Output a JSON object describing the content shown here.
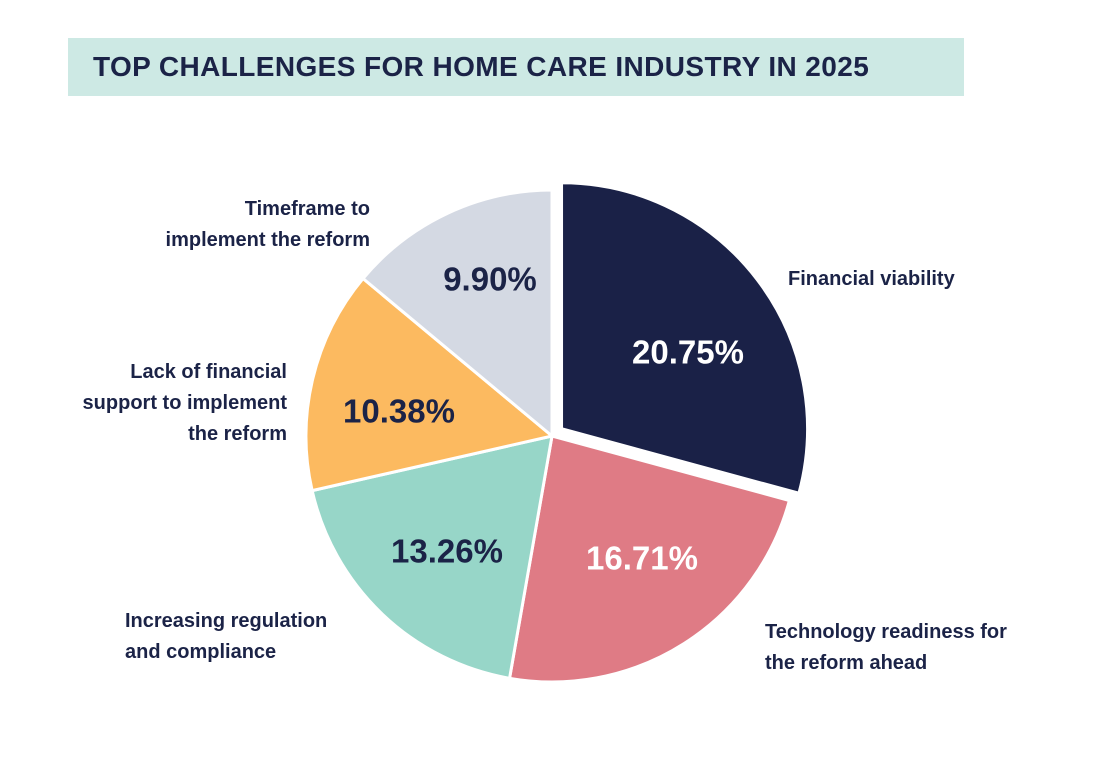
{
  "title": {
    "text": "TOP CHALLENGES FOR HOME CARE INDUSTRY IN 2025",
    "background_color": "#cde9e4",
    "text_color": "#1b2347"
  },
  "chart_data": {
    "type": "pie",
    "title": "TOP CHALLENGES FOR HOME CARE INDUSTRY IN 2025",
    "direction": "clockwise",
    "start_angle_deg": 0,
    "total": 71.0,
    "legend_position": "around-pie",
    "slices": [
      {
        "id": "financial-viability",
        "label": "Financial viability",
        "value": 20.75,
        "display_value": "20.75%",
        "color": "#1a2147",
        "value_label_color": "#ffffff"
      },
      {
        "id": "technology-readiness",
        "label": "Technology readiness for the reform ahead",
        "value": 16.71,
        "display_value": "16.71%",
        "color": "#df7b85",
        "value_label_color": "#ffffff"
      },
      {
        "id": "increasing-regulation",
        "label": "Increasing regulation and compliance",
        "value": 13.26,
        "display_value": "13.26%",
        "color": "#97d6c8",
        "value_label_color": "#1b2347"
      },
      {
        "id": "financial-support",
        "label": "Lack of financial support to implement the reform",
        "value": 10.38,
        "display_value": "10.38%",
        "color": "#fcba60",
        "value_label_color": "#1b2347"
      },
      {
        "id": "timeframe",
        "label": "Timeframe to implement the reform",
        "value": 9.9,
        "display_value": "9.90%",
        "color": "#d4d9e3",
        "value_label_color": "#1b2347"
      }
    ]
  },
  "outer_labels": {
    "financial_viability": "Financial viability",
    "technology_readiness": "Technology readiness for\nthe reform ahead",
    "increasing_regulation": "Increasing regulation\nand compliance",
    "financial_support": "Lack of financial\nsupport to implement\nthe reform",
    "timeframe": "Timeframe to\nimplement the reform"
  }
}
